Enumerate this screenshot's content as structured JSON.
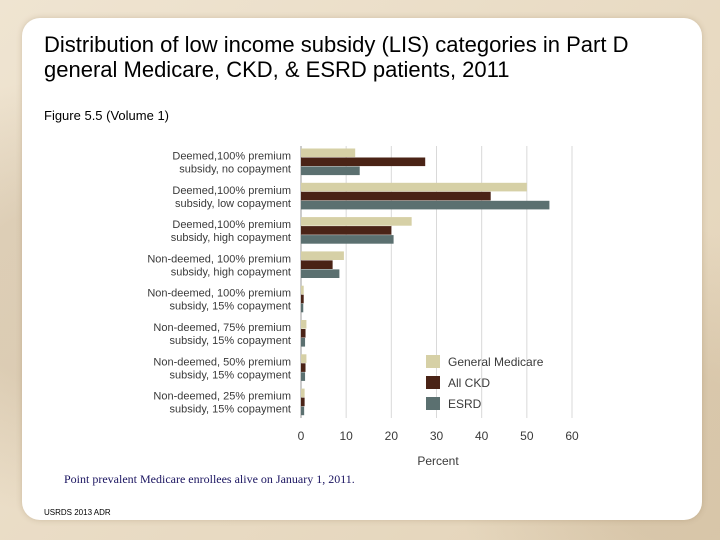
{
  "title": "Distribution of low income subsidy (LIS) categories in Part D general Medicare, CKD, & ESRD patients, 2011",
  "subtitle": "Figure 5.5 (Volume 1)",
  "note": "Point prevalent Medicare enrollees alive on January 1, 2011.",
  "source": "USRDS 2013 ADR",
  "chart_data": {
    "type": "bar",
    "orientation": "horizontal",
    "categories": [
      [
        "Deemed,100% premium",
        "subsidy, no copayment"
      ],
      [
        "Deemed,100% premium",
        "subsidy, low copayment"
      ],
      [
        "Deemed,100% premium",
        "subsidy, high copayment"
      ],
      [
        "Non-deemed, 100% premium",
        "subsidy, high copayment"
      ],
      [
        "Non-deemed, 100% premium",
        "subsidy, 15% copayment"
      ],
      [
        "Non-deemed, 75% premium",
        "subsidy, 15% copayment"
      ],
      [
        "Non-deemed, 50% premium",
        "subsidy, 15% copayment"
      ],
      [
        "Non-deemed, 25% premium",
        "subsidy, 15% copayment"
      ]
    ],
    "series": [
      {
        "name": "General Medicare",
        "color": "#d6d0a6",
        "values": [
          12,
          50,
          24.5,
          9.5,
          0.6,
          1.2,
          1.2,
          0.8
        ]
      },
      {
        "name": "All CKD",
        "color": "#4a2316",
        "values": [
          27.5,
          42,
          20,
          7,
          0.6,
          1,
          1,
          0.8
        ]
      },
      {
        "name": "ESRD",
        "color": "#5b7070",
        "values": [
          13,
          55,
          20.5,
          8.5,
          0.5,
          0.9,
          0.9,
          0.7
        ]
      }
    ],
    "xlabel": "Percent",
    "xlim": [
      0,
      60
    ],
    "xticks": [
      0,
      10,
      20,
      30,
      40,
      50,
      60
    ],
    "legend_position": "right"
  }
}
